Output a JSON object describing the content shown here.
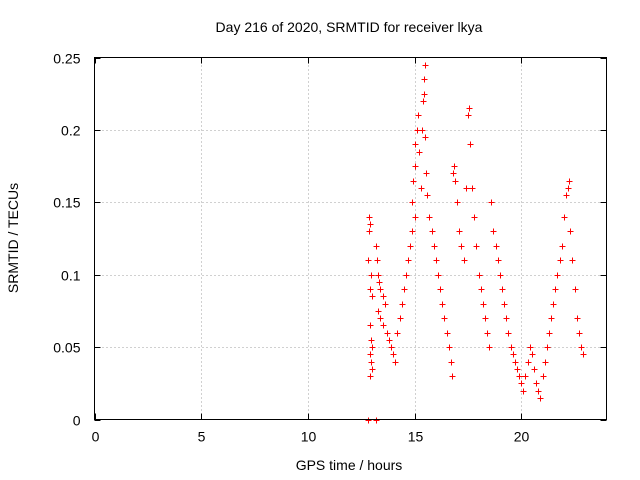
{
  "chart_data": {
    "type": "scatter",
    "title": "Day 216 of 2020, SRMTID for receiver lkya",
    "xlabel": "GPS time / hours",
    "ylabel": "SRMTID / TECUs",
    "xlim": [
      0,
      24
    ],
    "ylim": [
      0,
      0.25
    ],
    "xticks": [
      0,
      5,
      10,
      15,
      20
    ],
    "xtick_labels": [
      "0",
      "5",
      "10",
      "15",
      "20"
    ],
    "yticks": [
      0,
      0.05,
      0.1,
      0.15,
      0.2,
      0.25
    ],
    "ytick_labels": [
      "0",
      "0.05",
      "0.1",
      "0.15",
      "0.2",
      "0.25"
    ],
    "grid": true,
    "marker": "plus",
    "color": "#ff0000",
    "series": [
      {
        "name": "SRMTID",
        "points": [
          [
            12.8,
            0.0
          ],
          [
            13.2,
            0.0
          ],
          [
            12.85,
            0.14
          ],
          [
            12.9,
            0.135
          ],
          [
            12.88,
            0.13
          ],
          [
            12.82,
            0.11
          ],
          [
            12.95,
            0.1
          ],
          [
            12.9,
            0.09
          ],
          [
            13.0,
            0.085
          ],
          [
            12.9,
            0.065
          ],
          [
            12.95,
            0.055
          ],
          [
            13.0,
            0.05
          ],
          [
            12.9,
            0.045
          ],
          [
            12.95,
            0.04
          ],
          [
            13.0,
            0.035
          ],
          [
            12.92,
            0.03
          ],
          [
            13.2,
            0.12
          ],
          [
            13.25,
            0.11
          ],
          [
            13.3,
            0.1
          ],
          [
            13.35,
            0.095
          ],
          [
            13.4,
            0.09
          ],
          [
            13.5,
            0.085
          ],
          [
            13.6,
            0.08
          ],
          [
            13.3,
            0.075
          ],
          [
            13.4,
            0.07
          ],
          [
            13.5,
            0.065
          ],
          [
            13.7,
            0.06
          ],
          [
            13.8,
            0.055
          ],
          [
            13.9,
            0.05
          ],
          [
            14.0,
            0.045
          ],
          [
            14.1,
            0.04
          ],
          [
            14.2,
            0.06
          ],
          [
            14.3,
            0.07
          ],
          [
            14.4,
            0.08
          ],
          [
            14.5,
            0.09
          ],
          [
            14.6,
            0.1
          ],
          [
            14.7,
            0.11
          ],
          [
            14.8,
            0.12
          ],
          [
            14.9,
            0.13
          ],
          [
            15.0,
            0.14
          ],
          [
            14.9,
            0.15
          ],
          [
            14.95,
            0.165
          ],
          [
            15.0,
            0.175
          ],
          [
            15.0,
            0.19
          ],
          [
            15.1,
            0.2
          ],
          [
            15.15,
            0.21
          ],
          [
            15.2,
            0.185
          ],
          [
            15.3,
            0.16
          ],
          [
            15.35,
            0.2
          ],
          [
            15.4,
            0.22
          ],
          [
            15.45,
            0.235
          ],
          [
            15.5,
            0.245
          ],
          [
            15.45,
            0.225
          ],
          [
            15.5,
            0.195
          ],
          [
            15.55,
            0.17
          ],
          [
            15.6,
            0.155
          ],
          [
            15.7,
            0.14
          ],
          [
            15.8,
            0.13
          ],
          [
            15.9,
            0.12
          ],
          [
            16.0,
            0.11
          ],
          [
            16.1,
            0.1
          ],
          [
            16.2,
            0.09
          ],
          [
            16.3,
            0.08
          ],
          [
            16.4,
            0.07
          ],
          [
            16.5,
            0.06
          ],
          [
            16.6,
            0.05
          ],
          [
            16.7,
            0.04
          ],
          [
            16.75,
            0.03
          ],
          [
            16.8,
            0.17
          ],
          [
            16.85,
            0.175
          ],
          [
            16.9,
            0.165
          ],
          [
            17.0,
            0.15
          ],
          [
            17.1,
            0.13
          ],
          [
            17.2,
            0.12
          ],
          [
            17.3,
            0.11
          ],
          [
            17.4,
            0.16
          ],
          [
            17.5,
            0.21
          ],
          [
            17.55,
            0.215
          ],
          [
            17.6,
            0.19
          ],
          [
            17.7,
            0.16
          ],
          [
            17.8,
            0.14
          ],
          [
            17.9,
            0.12
          ],
          [
            18.0,
            0.1
          ],
          [
            18.1,
            0.09
          ],
          [
            18.2,
            0.08
          ],
          [
            18.3,
            0.07
          ],
          [
            18.4,
            0.06
          ],
          [
            18.5,
            0.05
          ],
          [
            18.6,
            0.15
          ],
          [
            18.7,
            0.13
          ],
          [
            18.8,
            0.12
          ],
          [
            18.9,
            0.11
          ],
          [
            19.0,
            0.1
          ],
          [
            19.1,
            0.09
          ],
          [
            19.2,
            0.08
          ],
          [
            19.3,
            0.07
          ],
          [
            19.4,
            0.06
          ],
          [
            19.5,
            0.05
          ],
          [
            19.6,
            0.045
          ],
          [
            19.7,
            0.04
          ],
          [
            19.8,
            0.035
          ],
          [
            19.9,
            0.03
          ],
          [
            20.0,
            0.025
          ],
          [
            20.1,
            0.02
          ],
          [
            20.2,
            0.03
          ],
          [
            20.3,
            0.04
          ],
          [
            20.4,
            0.05
          ],
          [
            20.5,
            0.045
          ],
          [
            20.6,
            0.035
          ],
          [
            20.7,
            0.025
          ],
          [
            20.8,
            0.02
          ],
          [
            20.9,
            0.015
          ],
          [
            21.0,
            0.03
          ],
          [
            21.1,
            0.04
          ],
          [
            21.2,
            0.05
          ],
          [
            21.3,
            0.06
          ],
          [
            21.4,
            0.07
          ],
          [
            21.5,
            0.08
          ],
          [
            21.6,
            0.09
          ],
          [
            21.7,
            0.1
          ],
          [
            21.8,
            0.11
          ],
          [
            21.9,
            0.12
          ],
          [
            22.0,
            0.14
          ],
          [
            22.1,
            0.155
          ],
          [
            22.2,
            0.16
          ],
          [
            22.25,
            0.165
          ],
          [
            22.3,
            0.13
          ],
          [
            22.4,
            0.11
          ],
          [
            22.5,
            0.09
          ],
          [
            22.6,
            0.07
          ],
          [
            22.7,
            0.06
          ],
          [
            22.8,
            0.05
          ],
          [
            22.9,
            0.045
          ]
        ]
      }
    ]
  }
}
